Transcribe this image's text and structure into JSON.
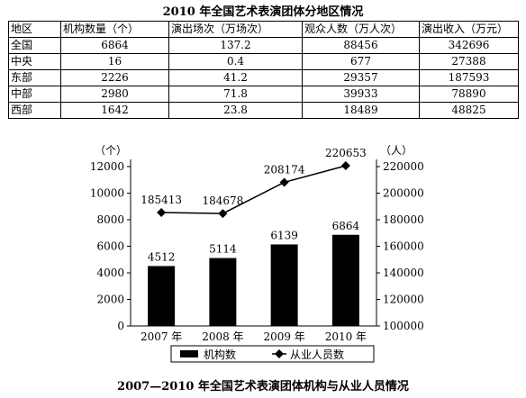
{
  "table": {
    "title": "2010 年全国艺术表演团体分地区情况",
    "headers": [
      "地区",
      "机构数量（个）",
      "演出场次（万场次）",
      "观众人数（万人次）",
      "演出收入（万元）"
    ],
    "rows": [
      [
        "全国",
        "6864",
        "137.2",
        "88456",
        "342696"
      ],
      [
        "中央",
        "16",
        "0.4",
        "677",
        "27388"
      ],
      [
        "东部",
        "2226",
        "41.2",
        "29357",
        "187593"
      ],
      [
        "中部",
        "2980",
        "71.8",
        "39933",
        "78890"
      ],
      [
        "西部",
        "1642",
        "23.8",
        "18489",
        "48825"
      ]
    ]
  },
  "chart_data": {
    "type": "bar",
    "title": "2007—2010 年全国艺术表演团体机构与从业人员情况",
    "categories": [
      "2007 年",
      "2008 年",
      "2009 年",
      "2010 年"
    ],
    "left_axis": {
      "unit": "（个）",
      "ylim": [
        0,
        12000
      ],
      "ticks": [
        0,
        2000,
        4000,
        6000,
        8000,
        10000,
        12000
      ]
    },
    "right_axis": {
      "unit": "（人）",
      "ylim": [
        100000,
        220000
      ],
      "ticks": [
        100000,
        120000,
        140000,
        160000,
        180000,
        200000,
        220000
      ]
    },
    "series": [
      {
        "name": "机构数",
        "type": "bar",
        "axis": "left",
        "values": [
          4512,
          5114,
          6139,
          6864
        ],
        "color": "#000000"
      },
      {
        "name": "从业人员数",
        "type": "line",
        "axis": "right",
        "values": [
          185413,
          184678,
          208174,
          220653
        ],
        "color": "#000000"
      }
    ],
    "legend_position": "bottom"
  }
}
